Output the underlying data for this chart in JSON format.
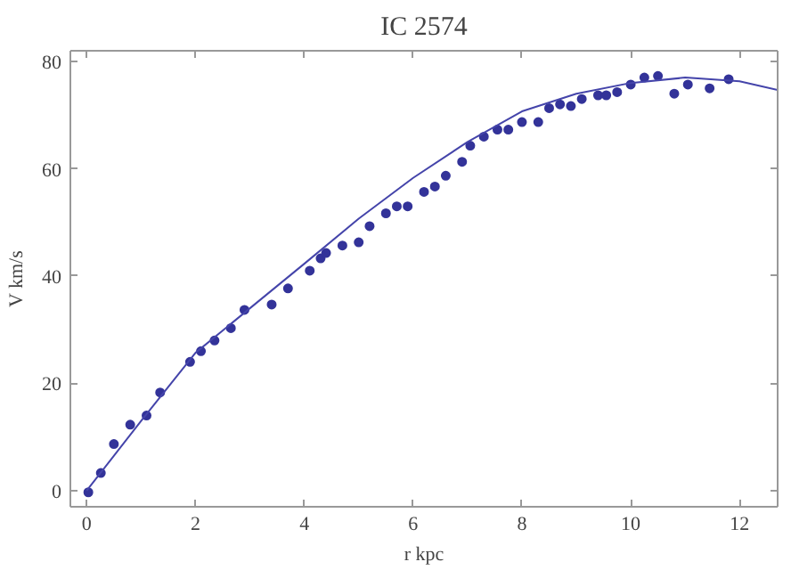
{
  "chart_data": {
    "type": "scatter",
    "title": "IC 2574",
    "xlabel": "r kpc",
    "ylabel": "V km/s",
    "xlim": [
      -0.3,
      12.7
    ],
    "ylim": [
      -3,
      82
    ],
    "xticks": [
      0,
      2,
      4,
      6,
      8,
      10,
      12
    ],
    "yticks": [
      0,
      20,
      40,
      60,
      80
    ],
    "grid": false,
    "series": [
      {
        "marker": "circle",
        "color": "#333399",
        "x": [
          0.03,
          0.26,
          0.5,
          0.8,
          1.1,
          1.35,
          1.9,
          2.1,
          2.35,
          2.65,
          2.9,
          3.4,
          3.7,
          4.1,
          4.3,
          4.4,
          4.7,
          5.0,
          5.2,
          5.5,
          5.7,
          5.9,
          6.2,
          6.4,
          6.6,
          6.9,
          7.05,
          7.3,
          7.55,
          7.75,
          8.0,
          8.3,
          8.5,
          8.7,
          8.9,
          9.1,
          9.4,
          9.55,
          9.75,
          10.0,
          10.25,
          10.5,
          10.8,
          11.05,
          11.45,
          11.8
        ],
        "values": [
          -0.3,
          3.3,
          8.7,
          12.3,
          14,
          18.3,
          24,
          26,
          28,
          30.3,
          33.7,
          34.7,
          37.7,
          41,
          43.3,
          44.3,
          45.7,
          46.3,
          49.3,
          51.7,
          53,
          53,
          55.7,
          56.7,
          58.7,
          61.3,
          64.3,
          66,
          67.3,
          67.3,
          68.7,
          68.7,
          71.3,
          72,
          71.7,
          73,
          73.7,
          73.7,
          74.3,
          75.7,
          77,
          77.3,
          74,
          75.7,
          75,
          76.7
        ]
      },
      {
        "type": "line",
        "marker": "none",
        "line_style": "solid",
        "color": "#4444aa",
        "x": [
          0,
          1,
          2,
          3,
          4,
          5,
          6,
          7,
          8,
          9,
          10,
          11,
          12,
          12.7
        ],
        "values": [
          0,
          13,
          25.7,
          34,
          42.3,
          50.7,
          58.3,
          65,
          70.7,
          74,
          76,
          77,
          76.3,
          74.7
        ]
      }
    ]
  }
}
